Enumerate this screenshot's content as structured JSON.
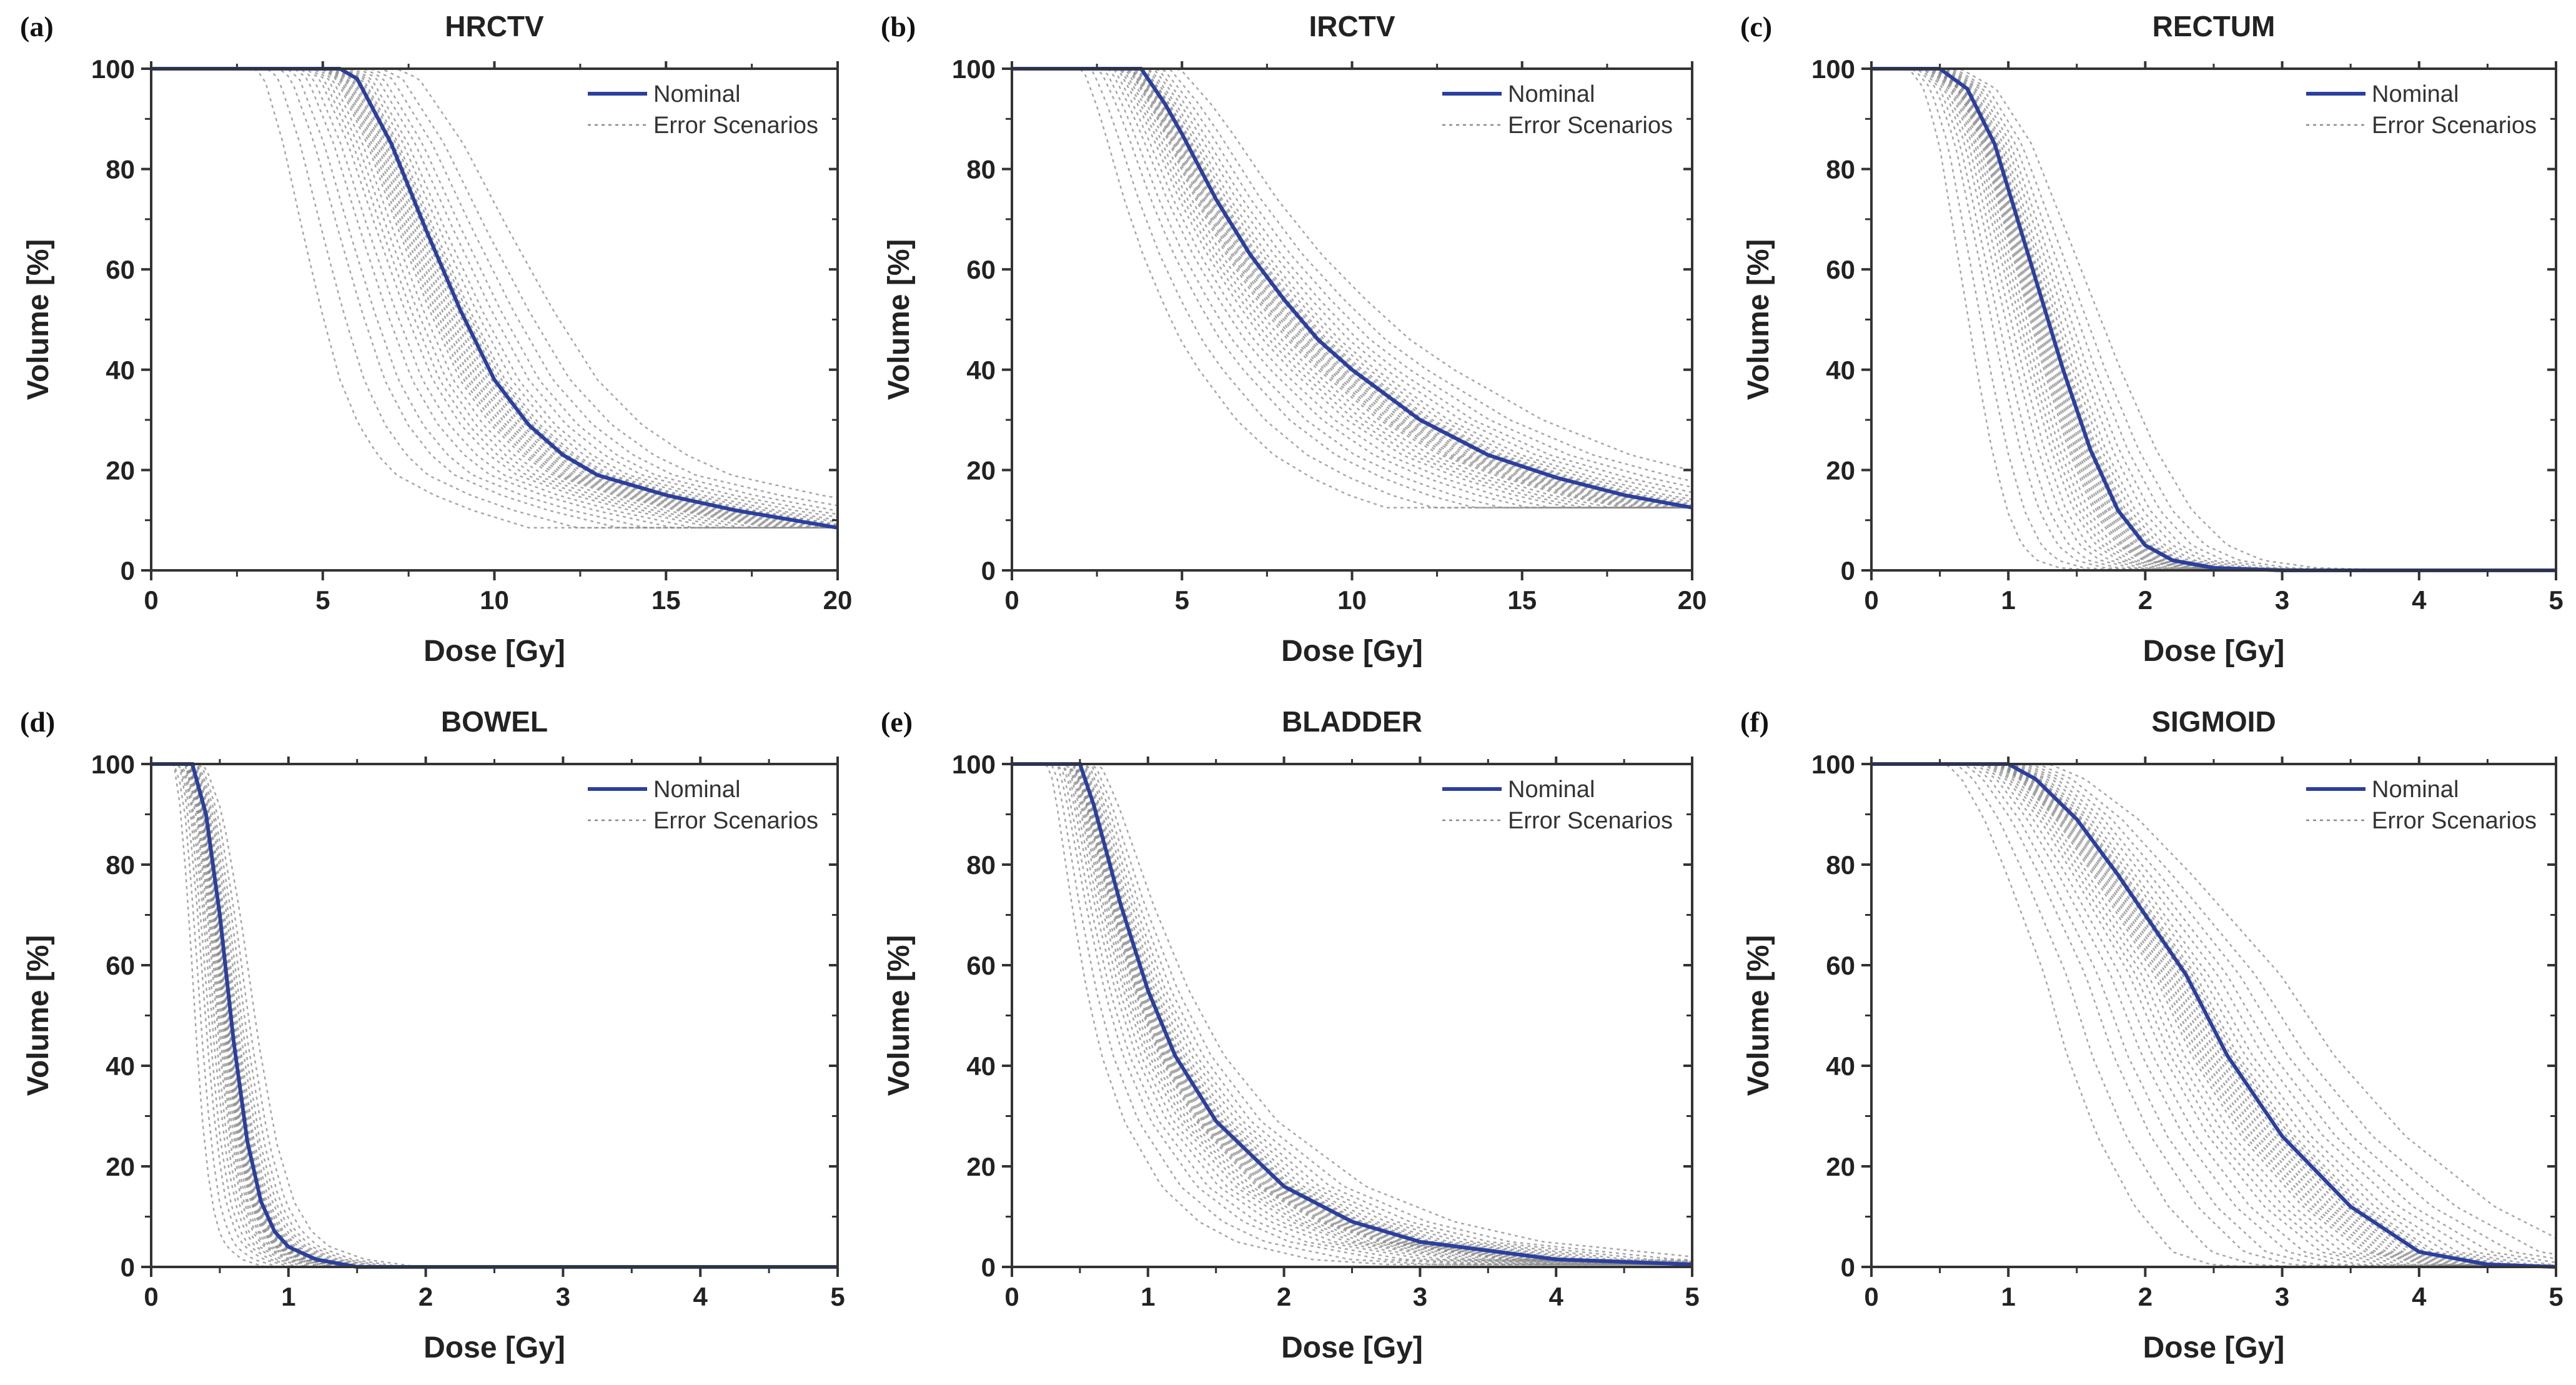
{
  "colors": {
    "nominal": "#2b3f9e",
    "error": "#8a8a8a",
    "axis": "#333333"
  },
  "legend": {
    "nominal": "Nominal",
    "error": "Error Scenarios",
    "placement": "top-right"
  },
  "error_scenario_dose_scales": [
    0.55,
    0.62,
    0.68,
    0.72,
    0.76,
    0.79,
    0.82,
    0.84,
    0.86,
    0.88,
    0.9,
    0.91,
    0.92,
    0.93,
    0.94,
    0.95,
    0.96,
    0.97,
    0.98,
    0.99,
    1.01,
    1.02,
    1.03,
    1.05,
    1.07,
    1.1,
    1.13,
    1.17,
    1.22,
    1.3
  ],
  "chart_data": [
    {
      "panel": "(a)",
      "type": "line",
      "title": "HRCTV",
      "xlabel": "Dose [Gy]",
      "ylabel": "Volume [%]",
      "xlim": [
        0,
        20
      ],
      "ylim": [
        0,
        100
      ],
      "xticks": [
        "0",
        "5",
        "10",
        "15",
        "20"
      ],
      "yticks": [
        "0",
        "20",
        "40",
        "60",
        "80",
        "100"
      ],
      "nominal": [
        [
          0,
          100
        ],
        [
          5.5,
          100
        ],
        [
          6,
          98
        ],
        [
          7,
          85
        ],
        [
          8,
          68
        ],
        [
          9,
          52
        ],
        [
          10,
          38
        ],
        [
          11,
          29
        ],
        [
          12,
          23
        ],
        [
          13,
          19
        ],
        [
          15,
          15
        ],
        [
          17,
          12
        ],
        [
          20,
          8.5
        ]
      ]
    },
    {
      "panel": "(b)",
      "type": "line",
      "title": "IRCTV",
      "xlabel": "Dose [Gy]",
      "ylabel": "Volume [%]",
      "xlim": [
        0,
        20
      ],
      "ylim": [
        0,
        100
      ],
      "xticks": [
        "0",
        "5",
        "10",
        "15",
        "20"
      ],
      "yticks": [
        "0",
        "20",
        "40",
        "60",
        "80",
        "100"
      ],
      "nominal": [
        [
          0,
          100
        ],
        [
          3.8,
          100
        ],
        [
          4.5,
          93
        ],
        [
          5,
          87
        ],
        [
          6,
          74
        ],
        [
          7,
          63
        ],
        [
          8,
          54
        ],
        [
          9,
          46
        ],
        [
          10,
          40
        ],
        [
          12,
          30
        ],
        [
          14,
          23
        ],
        [
          16,
          18.5
        ],
        [
          18,
          15
        ],
        [
          20,
          12.5
        ]
      ]
    },
    {
      "panel": "(c)",
      "type": "line",
      "title": "RECTUM",
      "xlabel": "Dose [Gy]",
      "ylabel": "Volume [%]",
      "xlim": [
        0,
        5
      ],
      "ylim": [
        0,
        100
      ],
      "xticks": [
        "0",
        "1",
        "2",
        "3",
        "4",
        "5"
      ],
      "yticks": [
        "0",
        "20",
        "40",
        "60",
        "80",
        "100"
      ],
      "nominal": [
        [
          0,
          100
        ],
        [
          0.5,
          100
        ],
        [
          0.7,
          96
        ],
        [
          0.9,
          85
        ],
        [
          1,
          76
        ],
        [
          1.2,
          58
        ],
        [
          1.4,
          40
        ],
        [
          1.6,
          24
        ],
        [
          1.8,
          12
        ],
        [
          2,
          5
        ],
        [
          2.2,
          2
        ],
        [
          2.5,
          0.5
        ],
        [
          3,
          0
        ],
        [
          5,
          0
        ]
      ]
    },
    {
      "panel": "(d)",
      "type": "line",
      "title": "BOWEL",
      "xlabel": "Dose [Gy]",
      "ylabel": "Volume [%]",
      "xlim": [
        0,
        5
      ],
      "ylim": [
        0,
        100
      ],
      "xticks": [
        "0",
        "1",
        "2",
        "3",
        "4",
        "5"
      ],
      "yticks": [
        "0",
        "20",
        "40",
        "60",
        "80",
        "100"
      ],
      "nominal": [
        [
          0,
          100
        ],
        [
          0.3,
          100
        ],
        [
          0.4,
          90
        ],
        [
          0.5,
          70
        ],
        [
          0.6,
          45
        ],
        [
          0.7,
          25
        ],
        [
          0.8,
          13
        ],
        [
          0.9,
          7
        ],
        [
          1,
          4
        ],
        [
          1.2,
          1.5
        ],
        [
          1.5,
          0
        ],
        [
          5,
          0
        ]
      ]
    },
    {
      "panel": "(e)",
      "type": "line",
      "title": "BLADDER",
      "xlabel": "Dose [Gy]",
      "ylabel": "Volume [%]",
      "xlim": [
        0,
        5
      ],
      "ylim": [
        0,
        100
      ],
      "xticks": [
        "0",
        "1",
        "2",
        "3",
        "4",
        "5"
      ],
      "yticks": [
        "0",
        "20",
        "40",
        "60",
        "80",
        "100"
      ],
      "nominal": [
        [
          0,
          100
        ],
        [
          0.5,
          100
        ],
        [
          0.6,
          92
        ],
        [
          0.8,
          72
        ],
        [
          1,
          55
        ],
        [
          1.2,
          42
        ],
        [
          1.5,
          29
        ],
        [
          2,
          16
        ],
        [
          2.5,
          9
        ],
        [
          3,
          5
        ],
        [
          4,
          1.5
        ],
        [
          5,
          0.5
        ]
      ]
    },
    {
      "panel": "(f)",
      "type": "line",
      "title": "SIGMOID",
      "xlabel": "Dose [Gy]",
      "ylabel": "Volume [%]",
      "xlim": [
        0,
        5
      ],
      "ylim": [
        0,
        100
      ],
      "xticks": [
        "0",
        "1",
        "2",
        "3",
        "4",
        "5"
      ],
      "yticks": [
        "0",
        "20",
        "40",
        "60",
        "80",
        "100"
      ],
      "nominal": [
        [
          0,
          100
        ],
        [
          1,
          100
        ],
        [
          1.2,
          97
        ],
        [
          1.5,
          89
        ],
        [
          1.8,
          78
        ],
        [
          2,
          70
        ],
        [
          2.3,
          58
        ],
        [
          2.6,
          42
        ],
        [
          3,
          26
        ],
        [
          3.5,
          12
        ],
        [
          4,
          3
        ],
        [
          4.5,
          0.5
        ],
        [
          5,
          0
        ]
      ]
    }
  ]
}
